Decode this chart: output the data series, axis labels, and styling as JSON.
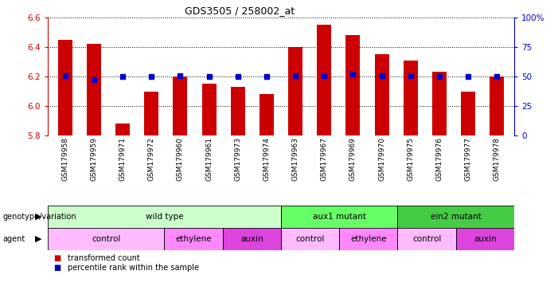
{
  "title": "GDS3505 / 258002_at",
  "samples": [
    "GSM179958",
    "GSM179959",
    "GSM179971",
    "GSM179972",
    "GSM179960",
    "GSM179961",
    "GSM179973",
    "GSM179974",
    "GSM179963",
    "GSM179967",
    "GSM179969",
    "GSM179970",
    "GSM179975",
    "GSM179976",
    "GSM179977",
    "GSM179978"
  ],
  "bar_values": [
    6.45,
    6.42,
    5.88,
    6.1,
    6.2,
    6.15,
    6.13,
    6.08,
    6.4,
    6.55,
    6.48,
    6.35,
    6.31,
    6.23,
    6.1,
    6.2
  ],
  "dot_values": [
    51,
    47,
    50,
    50,
    51,
    50,
    50,
    50,
    51,
    51,
    52,
    51,
    51,
    50,
    50,
    50
  ],
  "ylim_left": [
    5.8,
    6.6
  ],
  "ylim_right": [
    0,
    100
  ],
  "bar_color": "#cc0000",
  "dot_color": "#0000cc",
  "bg_color": "#ffffff",
  "ylabel_left_color": "#cc0000",
  "ylabel_right_color": "#0000cc",
  "yticks_left": [
    5.8,
    6.0,
    6.2,
    6.4,
    6.6
  ],
  "yticks_right": [
    0,
    25,
    50,
    75,
    100
  ],
  "ytick_labels_right": [
    "0",
    "25",
    "50",
    "75",
    "100%"
  ],
  "genotype_groups": [
    {
      "label": "wild type",
      "start": 0,
      "end": 8,
      "color": "#ccffcc"
    },
    {
      "label": "aux1 mutant",
      "start": 8,
      "end": 12,
      "color": "#66ff66"
    },
    {
      "label": "ein2 mutant",
      "start": 12,
      "end": 16,
      "color": "#44cc44"
    }
  ],
  "agent_groups": [
    {
      "label": "control",
      "start": 0,
      "end": 4,
      "color": "#ffbbff"
    },
    {
      "label": "ethylene",
      "start": 4,
      "end": 6,
      "color": "#ff88ff"
    },
    {
      "label": "auxin",
      "start": 6,
      "end": 8,
      "color": "#dd44dd"
    },
    {
      "label": "control",
      "start": 8,
      "end": 10,
      "color": "#ffbbff"
    },
    {
      "label": "ethylene",
      "start": 10,
      "end": 12,
      "color": "#ff88ff"
    },
    {
      "label": "control",
      "start": 12,
      "end": 14,
      "color": "#ffbbff"
    },
    {
      "label": "auxin",
      "start": 14,
      "end": 16,
      "color": "#dd44dd"
    }
  ]
}
